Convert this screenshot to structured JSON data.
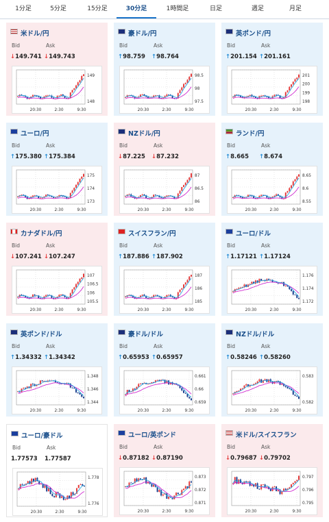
{
  "tabs": [
    {
      "label": "1分足",
      "active": false
    },
    {
      "label": "5分足",
      "active": false
    },
    {
      "label": "15分足",
      "active": false
    },
    {
      "label": "30分足",
      "active": true
    },
    {
      "label": "1時間足",
      "active": false
    },
    {
      "label": "日足",
      "active": false
    },
    {
      "label": "週足",
      "active": false
    },
    {
      "label": "月足",
      "active": false
    }
  ],
  "labels": {
    "bid": "Bid",
    "ask": "Ask"
  },
  "colors": {
    "up_bg": "#e6f2fb",
    "down_bg": "#fbeaec",
    "up_arrow": "#2b8fd6",
    "down_arrow": "#e53b3b",
    "candle_up": "#e53b3b",
    "candle_down": "#1a3f8f",
    "ma_pink": "#d02bd0",
    "ma_cyan": "#2aa3e0"
  },
  "cards": [
    {
      "title": "米ドル/円",
      "flag": "us-jp-flag",
      "dir": "down",
      "arrow": "↓",
      "bid": "149.741",
      "ask": "149.743",
      "y_ticks": [
        "149",
        "148"
      ],
      "x_ticks": [
        "20:30",
        "2:30",
        "9:30"
      ],
      "shape": "flat_spike"
    },
    {
      "title": "豪ドル/円",
      "flag": "au-jp-flag",
      "dir": "up",
      "arrow": "↑",
      "bid": "98.759",
      "ask": "98.764",
      "y_ticks": [
        "98.5",
        "98",
        "97.5"
      ],
      "x_ticks": [
        "20:30",
        "2:30",
        "9:30"
      ],
      "shape": "flat_spike"
    },
    {
      "title": "英ポンド/円",
      "flag": "gb-jp-flag",
      "dir": "up",
      "arrow": "↑",
      "bid": "201.154",
      "ask": "201.161",
      "y_ticks": [
        "201",
        "200",
        "199",
        "198"
      ],
      "x_ticks": [
        "20:30",
        "2:30",
        "9:30"
      ],
      "shape": "flat_spike"
    },
    {
      "title": "ユーロ/円",
      "flag": "eu-jp-flag",
      "dir": "up",
      "arrow": "↑",
      "bid": "175.380",
      "ask": "175.384",
      "y_ticks": [
        "175",
        "174",
        "173"
      ],
      "x_ticks": [
        "20:30",
        "2:30",
        "9:30"
      ],
      "shape": "flat_spike"
    },
    {
      "title": "NZドル/円",
      "flag": "nz-jp-flag",
      "dir": "down",
      "arrow": "↓",
      "bid": "87.225",
      "ask": "87.232",
      "y_ticks": [
        "87",
        "86.5",
        "86"
      ],
      "x_ticks": [
        "20:30",
        "2:30",
        "9:30"
      ],
      "shape": "flat_spike"
    },
    {
      "title": "ランド/円",
      "flag": "za-jp-flag",
      "dir": "up",
      "arrow": "↑",
      "bid": "8.665",
      "ask": "8.674",
      "y_ticks": [
        "8.65",
        "8.6",
        "8.55"
      ],
      "x_ticks": [
        "20:30",
        "2:30",
        "9:30"
      ],
      "shape": "flat_spike"
    },
    {
      "title": "カナダドル/円",
      "flag": "ca-jp-flag",
      "dir": "down",
      "arrow": "↓",
      "bid": "107.241",
      "ask": "107.247",
      "y_ticks": [
        "107",
        "106.5",
        "106",
        "105.5"
      ],
      "x_ticks": [
        "20:30",
        "2:30",
        "9:30"
      ],
      "shape": "flat_spike"
    },
    {
      "title": "スイスフラン/円",
      "flag": "ch-jp-flag",
      "dir": "up",
      "arrow": "↑",
      "bid": "187.886",
      "ask": "187.902",
      "y_ticks": [
        "187",
        "186",
        "185"
      ],
      "x_ticks": [
        "20:30",
        "2:30",
        "9:30"
      ],
      "shape": "flat_spike"
    },
    {
      "title": "ユーロ/ドル",
      "flag": "eu-us-flag",
      "dir": "up",
      "arrow": "↑",
      "bid": "1.17121",
      "ask": "1.17124",
      "y_ticks": [
        "1.176",
        "1.174",
        "1.172"
      ],
      "x_ticks": [
        "20:30",
        "2:30",
        "9:30"
      ],
      "shape": "rise_drop"
    },
    {
      "title": "英ポンド/ドル",
      "flag": "gb-us-flag",
      "dir": "up",
      "arrow": "↑",
      "bid": "1.34332",
      "ask": "1.34342",
      "y_ticks": [
        "1.348",
        "1.346",
        "1.344"
      ],
      "x_ticks": [
        "20:30",
        "2:30",
        "9:30"
      ],
      "shape": "rise_drop"
    },
    {
      "title": "豪ドル/ドル",
      "flag": "au-us-flag",
      "dir": "up",
      "arrow": "↑",
      "bid": "0.65953",
      "ask": "0.65957",
      "y_ticks": [
        "0.661",
        "0.66",
        "0.659"
      ],
      "x_ticks": [
        "20:30",
        "2:30",
        "9:30"
      ],
      "shape": "rise_drop"
    },
    {
      "title": "NZドル/ドル",
      "flag": "nz-us-flag",
      "dir": "up",
      "arrow": "↑",
      "bid": "0.58246",
      "ask": "0.58260",
      "y_ticks": [
        "0.583",
        "0.582"
      ],
      "x_ticks": [
        "20:30",
        "2:30",
        "9:30"
      ],
      "shape": "rise_drop"
    },
    {
      "title": "ユーロ/豪ドル",
      "flag": "eu-au-flag",
      "dir": "flat",
      "arrow": "",
      "bid": "1.77573",
      "ask": "1.77587",
      "y_ticks": [
        "1.778",
        "1.776"
      ],
      "x_ticks": [
        "20:30",
        "2:30",
        "9:30"
      ],
      "shape": "choppy"
    },
    {
      "title": "ユーロ/英ポンド",
      "flag": "eu-gb-flag",
      "dir": "down",
      "arrow": "↓",
      "bid": "0.87182",
      "ask": "0.87190",
      "y_ticks": [
        "0.873",
        "0.872",
        "0.871"
      ],
      "x_ticks": [
        "20:30",
        "2:30",
        "9:30"
      ],
      "shape": "choppy"
    },
    {
      "title": "米ドル/スイスフラン",
      "flag": "us-ch-flag",
      "dir": "down",
      "arrow": "↓",
      "bid": "0.79687",
      "ask": "0.79702",
      "y_ticks": [
        "0.797",
        "0.796",
        "0.795"
      ],
      "x_ticks": [
        "20:30",
        "2:30",
        "9:30"
      ],
      "shape": "drop_rise"
    }
  ]
}
